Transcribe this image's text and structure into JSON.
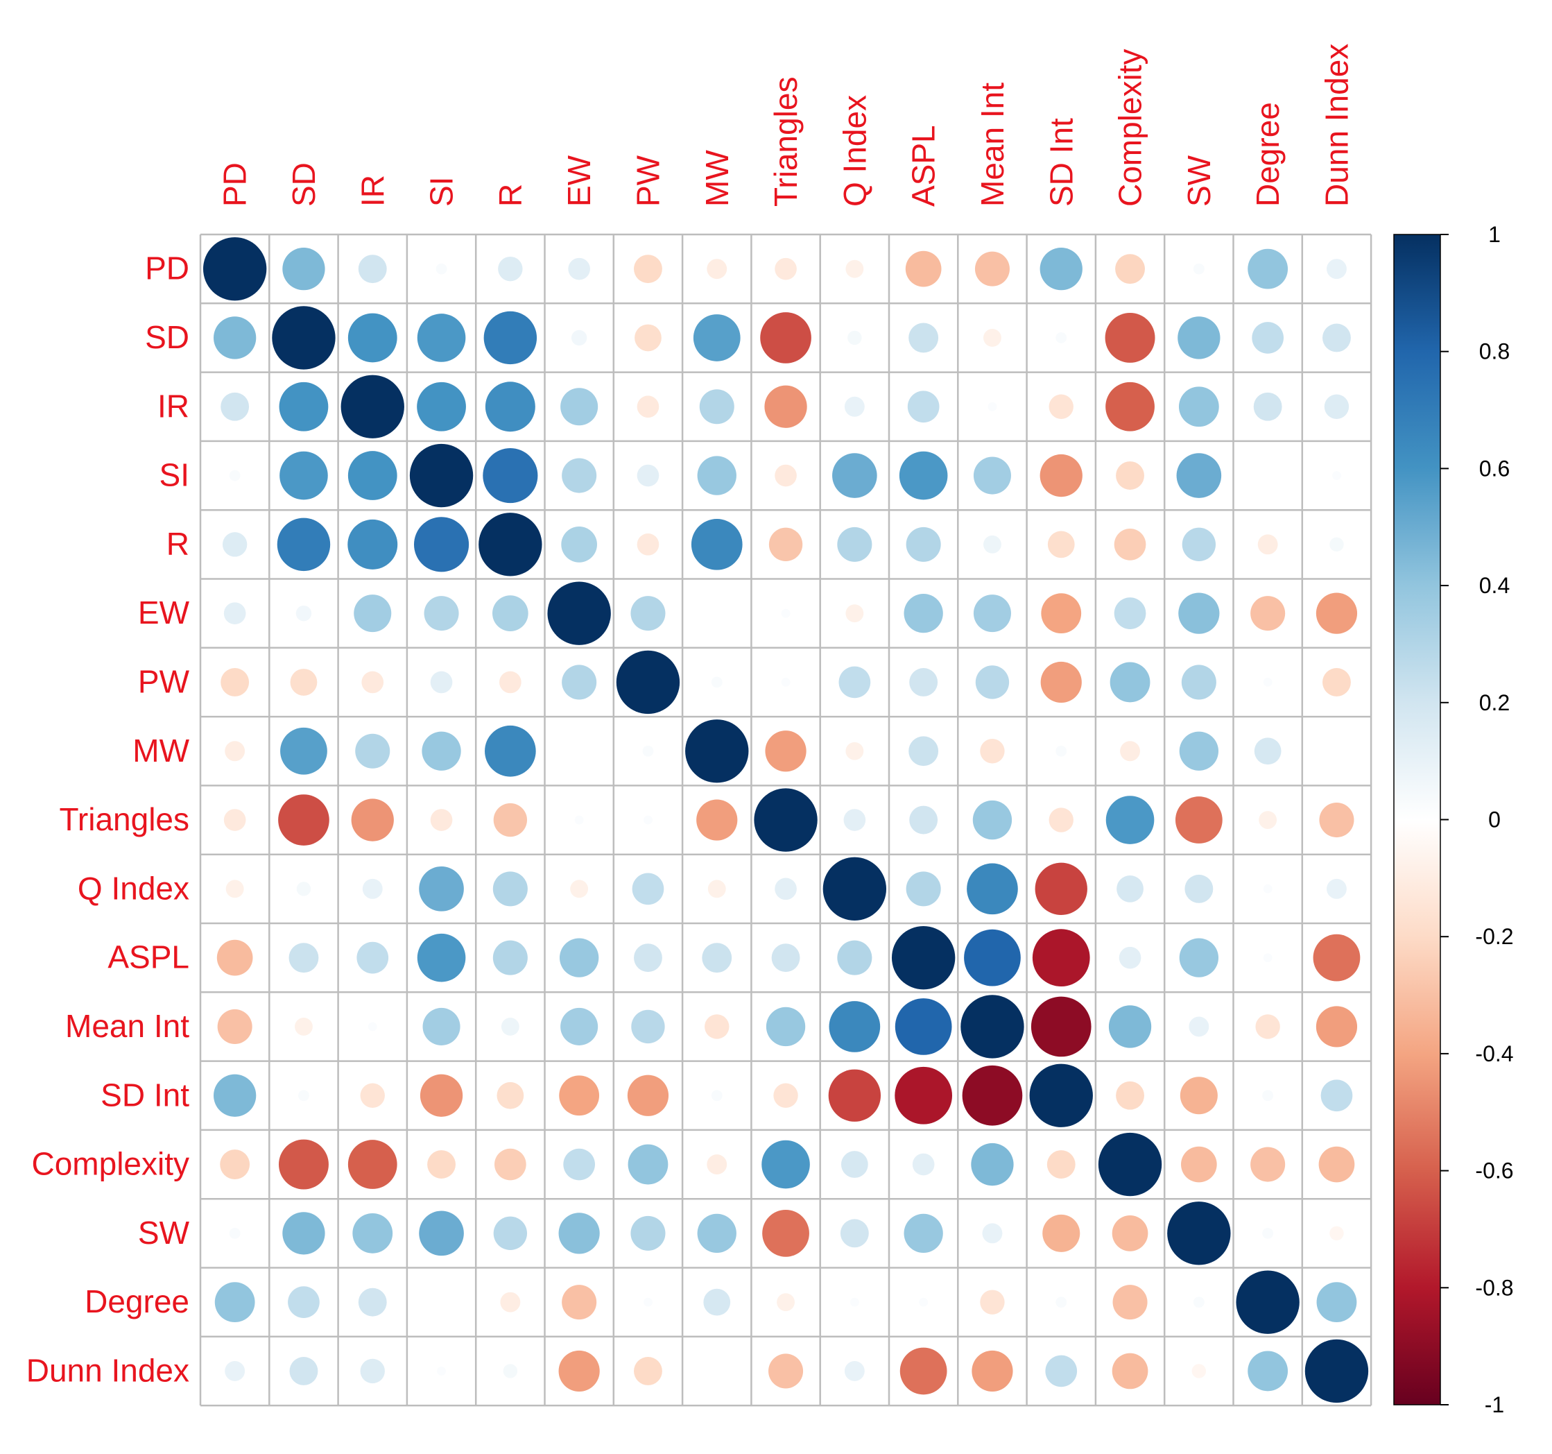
{
  "chart_data": {
    "type": "heatmap",
    "style": "correlation-circles",
    "variables": [
      "PD",
      "SD",
      "IR",
      "SI",
      "R",
      "EW",
      "PW",
      "MW",
      "Triangles",
      "Q Index",
      "ASPL",
      "Mean Int",
      "SD Int",
      "Complexity",
      "SW",
      "Degree",
      "Dunn Index"
    ],
    "matrix": [
      [
        1,
        0.45,
        0.2,
        0.03,
        0.15,
        0.12,
        -0.2,
        -0.1,
        -0.12,
        -0.08,
        -0.32,
        -0.3,
        0.45,
        -0.22,
        0.03,
        0.4,
        0.1
      ],
      [
        0.45,
        1,
        0.6,
        0.58,
        0.7,
        0.06,
        -0.18,
        0.55,
        -0.65,
        0.05,
        0.22,
        -0.08,
        0.03,
        -0.62,
        0.45,
        0.25,
        0.2
      ],
      [
        0.2,
        0.6,
        1,
        0.6,
        0.62,
        0.35,
        -0.12,
        0.3,
        -0.45,
        0.1,
        0.25,
        0.02,
        -0.15,
        -0.6,
        0.4,
        0.2,
        0.15
      ],
      [
        0.03,
        0.58,
        0.6,
        1,
        0.75,
        0.3,
        0.12,
        0.38,
        -0.12,
        0.5,
        0.58,
        0.35,
        -0.45,
        -0.2,
        0.5,
        0,
        0.02
      ],
      [
        0.15,
        0.7,
        0.62,
        0.75,
        1,
        0.32,
        -0.12,
        0.65,
        -0.28,
        0.3,
        0.3,
        0.08,
        -0.18,
        -0.25,
        0.28,
        -0.1,
        0.05
      ],
      [
        0.12,
        0.06,
        0.35,
        0.3,
        0.32,
        1,
        0.3,
        0,
        0.02,
        -0.08,
        0.38,
        0.35,
        -0.4,
        0.25,
        0.42,
        -0.3,
        -0.42
      ],
      [
        -0.2,
        -0.18,
        -0.12,
        0.12,
        -0.12,
        0.3,
        1,
        0.03,
        0.02,
        0.25,
        0.2,
        0.28,
        -0.42,
        0.4,
        0.3,
        0.02,
        -0.2
      ],
      [
        -0.1,
        0.55,
        0.3,
        0.38,
        0.65,
        0,
        0.03,
        1,
        -0.42,
        -0.08,
        0.22,
        -0.15,
        0.03,
        -0.1,
        0.38,
        0.18,
        0
      ],
      [
        -0.12,
        -0.65,
        -0.45,
        -0.12,
        -0.28,
        0.02,
        0.02,
        -0.42,
        1,
        0.12,
        0.2,
        0.38,
        -0.15,
        0.58,
        -0.55,
        -0.08,
        -0.3
      ],
      [
        -0.08,
        0.05,
        0.1,
        0.5,
        0.3,
        -0.08,
        0.25,
        -0.08,
        0.12,
        1,
        0.3,
        0.65,
        -0.68,
        0.18,
        0.2,
        0.02,
        0.1
      ],
      [
        -0.32,
        0.22,
        0.25,
        0.58,
        0.3,
        0.38,
        0.2,
        0.22,
        0.2,
        0.3,
        1,
        0.8,
        -0.82,
        0.12,
        0.38,
        0.02,
        -0.55
      ],
      [
        -0.3,
        -0.08,
        0.02,
        0.35,
        0.08,
        0.35,
        0.28,
        -0.15,
        0.38,
        0.65,
        0.8,
        1,
        -0.9,
        0.45,
        0.1,
        -0.15,
        -0.42
      ],
      [
        0.45,
        0.03,
        -0.15,
        -0.45,
        -0.18,
        -0.4,
        -0.42,
        0.03,
        -0.15,
        -0.68,
        -0.82,
        -0.9,
        1,
        -0.2,
        -0.35,
        0.03,
        0.25
      ],
      [
        -0.22,
        -0.62,
        -0.6,
        -0.2,
        -0.25,
        0.25,
        0.4,
        -0.1,
        0.58,
        0.18,
        0.12,
        0.45,
        -0.2,
        1,
        -0.32,
        -0.3,
        -0.32
      ],
      [
        0.03,
        0.45,
        0.4,
        0.5,
        0.28,
        0.42,
        0.3,
        0.38,
        -0.55,
        0.2,
        0.38,
        0.1,
        -0.35,
        -0.32,
        1,
        0.03,
        -0.05
      ],
      [
        0.4,
        0.25,
        0.2,
        0,
        -0.1,
        -0.3,
        0.02,
        0.18,
        -0.08,
        0.02,
        0.02,
        -0.15,
        0.03,
        -0.3,
        0.03,
        1,
        0.4
      ],
      [
        0.1,
        0.2,
        0.15,
        0.02,
        0.05,
        -0.42,
        -0.2,
        0,
        -0.3,
        0.1,
        -0.55,
        -0.42,
        0.25,
        -0.32,
        -0.05,
        0.4,
        1
      ]
    ],
    "colorbar": {
      "ticks": [
        "1",
        "0.8",
        "0.6",
        "0.4",
        "0.2",
        "0",
        "-0.2",
        "-0.4",
        "-0.6",
        "-0.8",
        "-1"
      ],
      "range": [
        -1,
        1
      ],
      "colors": [
        "#67001f",
        "#b2182b",
        "#d6604d",
        "#f4a582",
        "#fddbc7",
        "#ffffff",
        "#d1e5f0",
        "#92c5de",
        "#4393c3",
        "#2166ac",
        "#053061"
      ]
    },
    "label_color": "#e8141e"
  }
}
